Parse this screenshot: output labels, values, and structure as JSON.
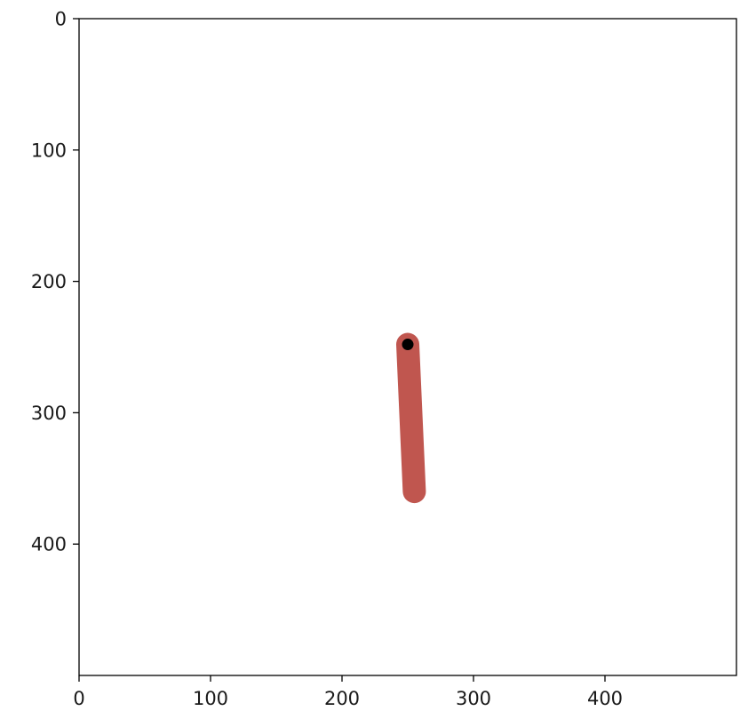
{
  "chart_data": {
    "type": "line",
    "title": "",
    "xlabel": "",
    "ylabel": "",
    "xlim": [
      0,
      500
    ],
    "ylim": [
      500,
      0
    ],
    "y_inverted": true,
    "grid": false,
    "xticks": [
      0,
      100,
      200,
      300,
      400
    ],
    "yticks": [
      0,
      100,
      200,
      300,
      400
    ],
    "series": [
      {
        "type": "line",
        "color": "#c0564f",
        "x": [
          250,
          255
        ],
        "y": [
          248,
          360
        ],
        "cap": "round"
      },
      {
        "type": "scatter",
        "color": "#000000",
        "x": [
          250
        ],
        "y": [
          248
        ]
      }
    ]
  }
}
